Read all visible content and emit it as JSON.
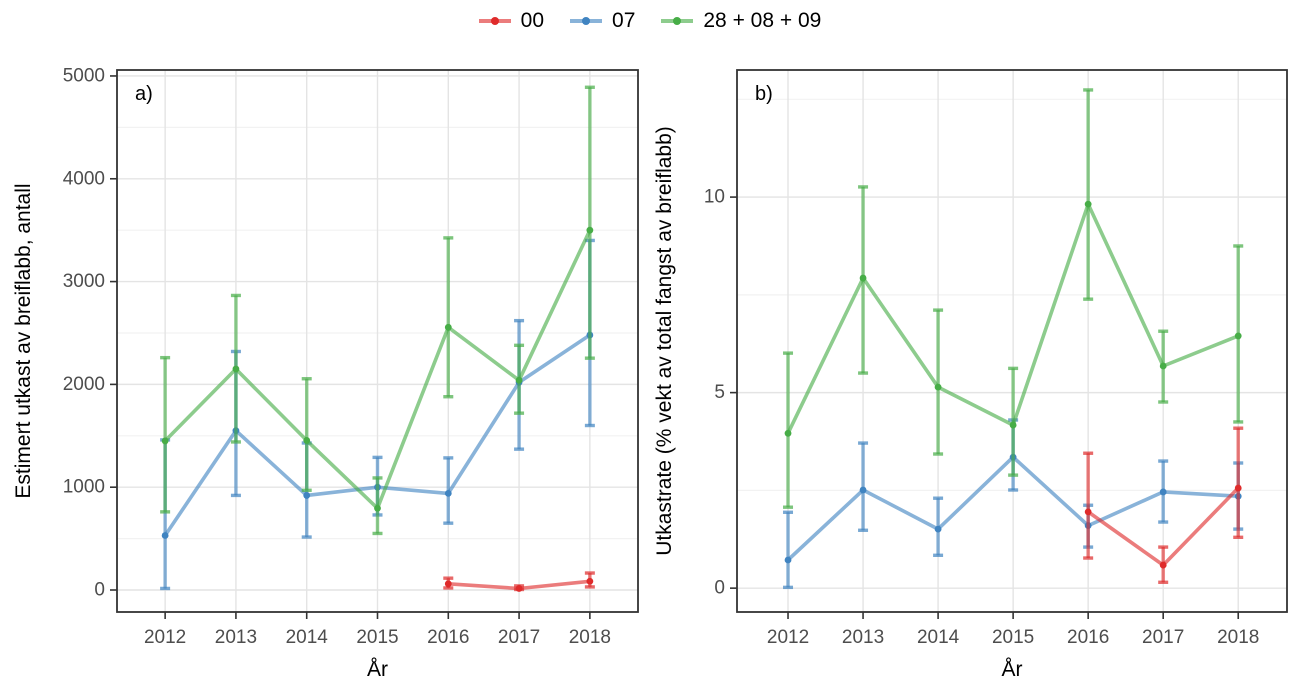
{
  "style": {
    "background": "#ffffff",
    "grid_major": "#e4e4e4",
    "grid_minor": "#f2f2f2",
    "panel_border": "#333333",
    "tick_color": "#333333",
    "tick_label_color": "#4d4d4d",
    "title_color": "#000000"
  },
  "legend": {
    "items": [
      {
        "label": "00",
        "color": "#df2b2b"
      },
      {
        "label": "07",
        "color": "#4084c1"
      },
      {
        "label": "28 + 08 + 09",
        "color": "#47ad47"
      }
    ]
  },
  "chart_data": [
    {
      "type": "line",
      "panel_label": "a)",
      "xlabel": "År",
      "ylabel": "Estimert utkast av breiflabb, antall",
      "xlim": [
        2011.32,
        2018.68
      ],
      "ylim": [
        -214,
        5058
      ],
      "xticks": [
        2012,
        2013,
        2014,
        2015,
        2016,
        2017,
        2018
      ],
      "yticks": [
        0,
        1000,
        2000,
        3000,
        4000,
        5000
      ],
      "grid": "major+minor",
      "legend_position": "top-center",
      "series": [
        {
          "name": "00",
          "color": "#df2b2b",
          "points": [
            {
              "x": 2016,
              "y": 60,
              "lo": 20,
              "hi": 115
            },
            {
              "x": 2017,
              "y": 15,
              "lo": 5,
              "hi": 40
            },
            {
              "x": 2018,
              "y": 85,
              "lo": 30,
              "hi": 165
            }
          ]
        },
        {
          "name": "07",
          "color": "#4084c1",
          "points": [
            {
              "x": 2012,
              "y": 530,
              "lo": 15,
              "hi": 1460
            },
            {
              "x": 2013,
              "y": 1550,
              "lo": 920,
              "hi": 2320
            },
            {
              "x": 2014,
              "y": 920,
              "lo": 515,
              "hi": 1430
            },
            {
              "x": 2015,
              "y": 1000,
              "lo": 730,
              "hi": 1290
            },
            {
              "x": 2016,
              "y": 940,
              "lo": 650,
              "hi": 1285
            },
            {
              "x": 2017,
              "y": 2020,
              "lo": 1370,
              "hi": 2620
            },
            {
              "x": 2018,
              "y": 2480,
              "lo": 1600,
              "hi": 3400
            }
          ]
        },
        {
          "name": "28 + 08 + 09",
          "color": "#47ad47",
          "points": [
            {
              "x": 2012,
              "y": 1450,
              "lo": 760,
              "hi": 2260
            },
            {
              "x": 2013,
              "y": 2150,
              "lo": 1440,
              "hi": 2865
            },
            {
              "x": 2014,
              "y": 1455,
              "lo": 970,
              "hi": 2055
            },
            {
              "x": 2015,
              "y": 795,
              "lo": 550,
              "hi": 1090
            },
            {
              "x": 2016,
              "y": 2555,
              "lo": 1880,
              "hi": 3425
            },
            {
              "x": 2017,
              "y": 2040,
              "lo": 1720,
              "hi": 2380
            },
            {
              "x": 2018,
              "y": 3500,
              "lo": 2255,
              "hi": 4890
            }
          ]
        }
      ]
    },
    {
      "type": "line",
      "panel_label": "b)",
      "xlabel": "År",
      "ylabel": "Utkastrate (% vekt av total fangst av breiflabb)",
      "xlim": [
        2011.32,
        2018.65
      ],
      "ylim": [
        -0.61,
        13.25
      ],
      "xticks": [
        2012,
        2013,
        2014,
        2015,
        2016,
        2017,
        2018
      ],
      "yticks": [
        0,
        5,
        10
      ],
      "grid": "major+minor",
      "legend_position": "top-center",
      "series": [
        {
          "name": "00",
          "color": "#df2b2b",
          "points": [
            {
              "x": 2016,
              "y": 1.95,
              "lo": 0.77,
              "hi": 3.45
            },
            {
              "x": 2017,
              "y": 0.59,
              "lo": 0.15,
              "hi": 1.05
            },
            {
              "x": 2018,
              "y": 2.56,
              "lo": 1.3,
              "hi": 4.09
            }
          ]
        },
        {
          "name": "07",
          "color": "#4084c1",
          "points": [
            {
              "x": 2012,
              "y": 0.72,
              "lo": 0.02,
              "hi": 1.94
            },
            {
              "x": 2013,
              "y": 2.51,
              "lo": 1.48,
              "hi": 3.71
            },
            {
              "x": 2014,
              "y": 1.51,
              "lo": 0.84,
              "hi": 2.3
            },
            {
              "x": 2015,
              "y": 3.35,
              "lo": 2.51,
              "hi": 4.3
            },
            {
              "x": 2016,
              "y": 1.6,
              "lo": 1.05,
              "hi": 2.12
            },
            {
              "x": 2017,
              "y": 2.46,
              "lo": 1.69,
              "hi": 3.25
            },
            {
              "x": 2018,
              "y": 2.35,
              "lo": 1.51,
              "hi": 3.2
            }
          ]
        },
        {
          "name": "28 + 08 + 09",
          "color": "#47ad47",
          "points": [
            {
              "x": 2012,
              "y": 3.96,
              "lo": 2.07,
              "hi": 6.01
            },
            {
              "x": 2013,
              "y": 7.93,
              "lo": 5.5,
              "hi": 10.26
            },
            {
              "x": 2014,
              "y": 5.14,
              "lo": 3.43,
              "hi": 7.11
            },
            {
              "x": 2015,
              "y": 4.17,
              "lo": 2.89,
              "hi": 5.62
            },
            {
              "x": 2016,
              "y": 9.82,
              "lo": 7.39,
              "hi": 12.74
            },
            {
              "x": 2017,
              "y": 5.68,
              "lo": 4.76,
              "hi": 6.57
            },
            {
              "x": 2018,
              "y": 6.45,
              "lo": 4.25,
              "hi": 8.75
            }
          ]
        }
      ]
    }
  ]
}
